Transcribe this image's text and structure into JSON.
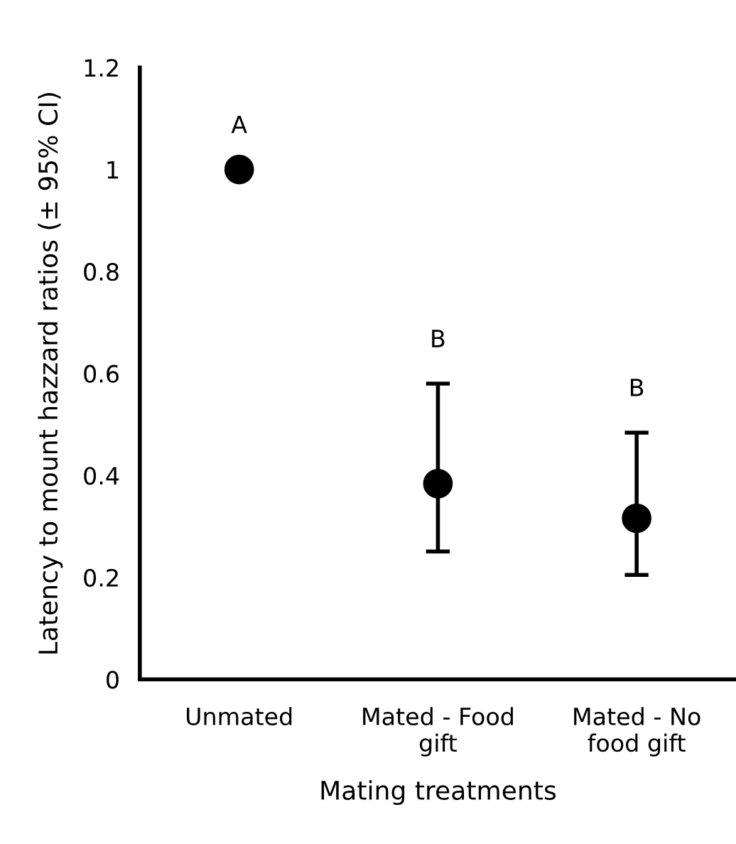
{
  "chart_data": {
    "type": "scatter",
    "xlabel": "Mating treatments",
    "ylabel": "Latency to mount hazzard ratios (± 95% CI)",
    "categories": [
      "Unmated",
      "Mated - Food\ngift",
      "Mated - No\nfood gift"
    ],
    "series": [
      {
        "color": "#000000",
        "values": [
          1,
          0.384,
          0.316
        ],
        "errors": [
          null,
          [
            0.251,
            0.58
          ],
          [
            0.205,
            0.484
          ]
        ]
      }
    ],
    "ylim": [
      0,
      1.2
    ],
    "yticks": [
      {
        "value": 0,
        "label": "0"
      },
      0.2,
      0.4,
      0.6,
      0.8,
      {
        "value": 1,
        "label": "1"
      },
      1.2
    ],
    "marker": "circle",
    "grid": false,
    "legend": false,
    "annotations": [
      "A",
      "B",
      "B"
    ]
  }
}
